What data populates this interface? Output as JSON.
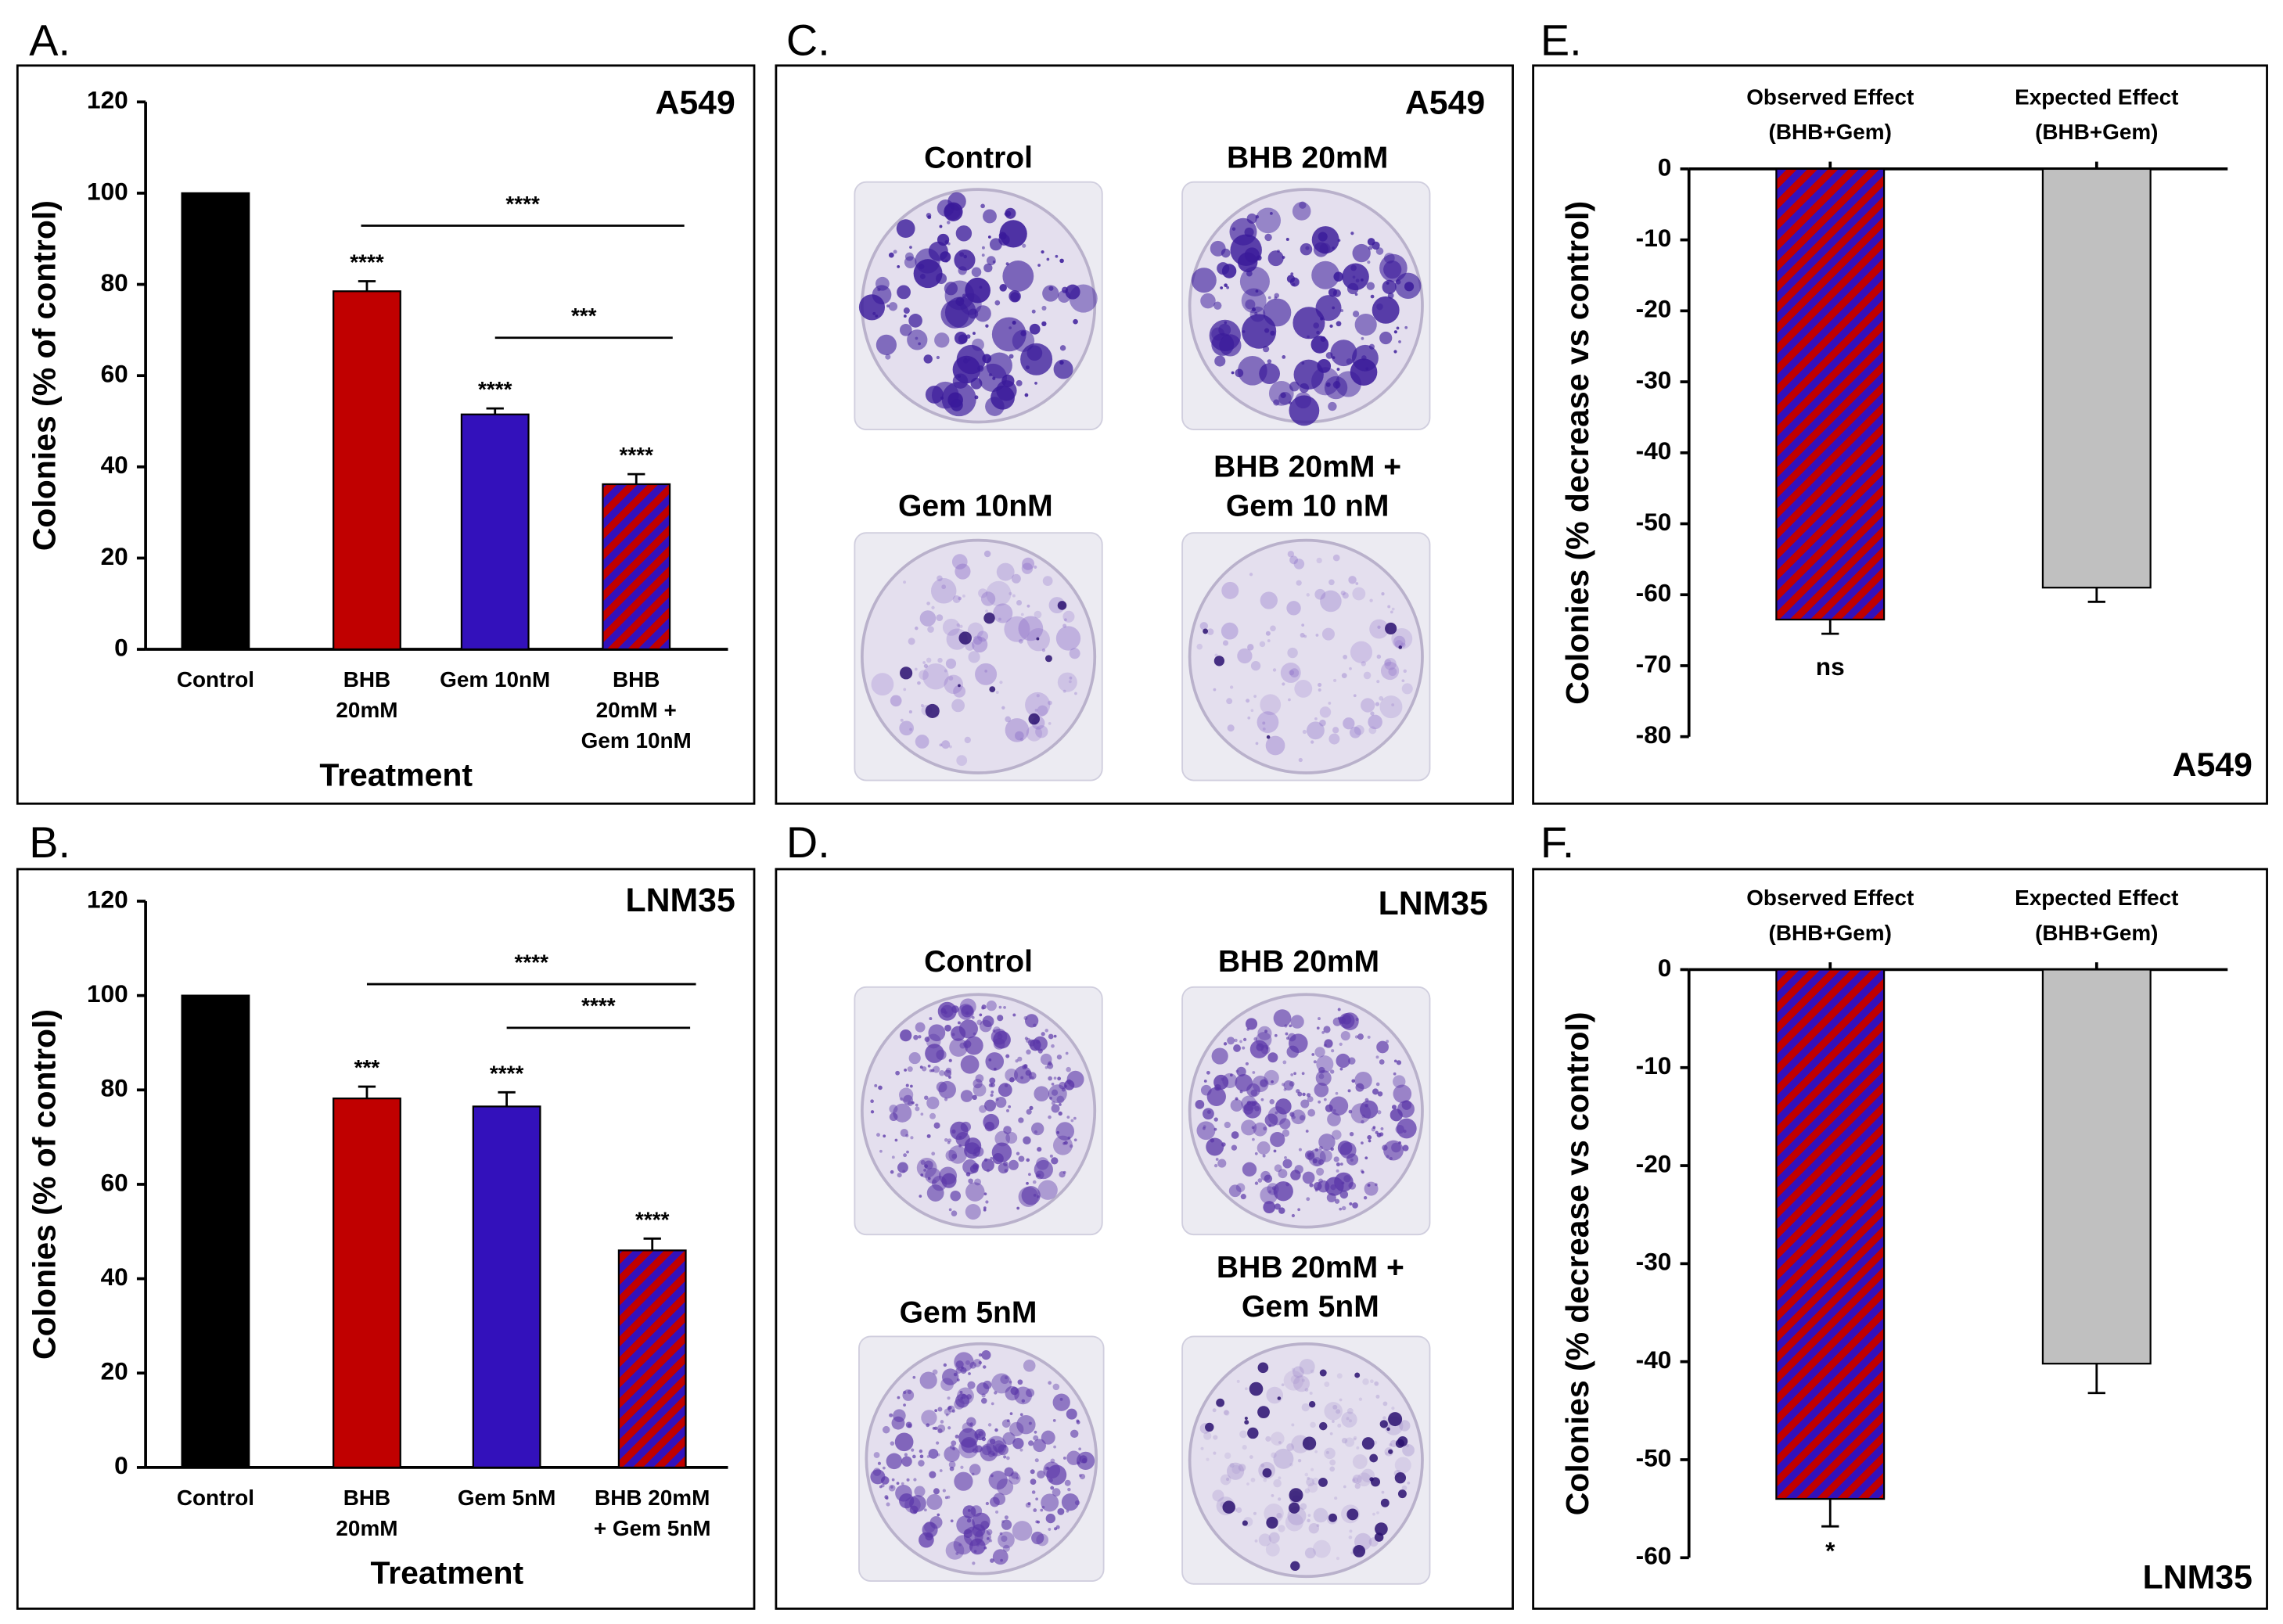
{
  "chart_data": [
    {
      "type": "bar",
      "panel_label": "A.",
      "title": "A549",
      "x_label": "Treatment",
      "y_label": "Colonies (% of control)",
      "categories": [
        [
          "Control"
        ],
        [
          "BHB",
          "20mM"
        ],
        [
          "Gem 10nM"
        ],
        [
          "BHB",
          "20mM +",
          "Gem 10nM"
        ]
      ],
      "values": [
        100,
        78.5,
        51.5,
        36.2
      ],
      "errors": [
        null,
        2.2,
        1.3,
        2.2
      ],
      "significance": [
        null,
        "****",
        "****",
        "****"
      ],
      "brackets": [
        "****",
        "***"
      ],
      "colors": [
        "#000000",
        "#c00000",
        "#3311bb",
        "hatch"
      ],
      "hatch_colors": [
        "#c00000",
        "#3311bb"
      ],
      "ylim": [
        0,
        120
      ],
      "yticks": [
        0,
        20,
        40,
        60,
        80,
        100,
        120
      ]
    },
    {
      "type": "bar",
      "panel_label": "B.",
      "title": "LNM35",
      "x_label": "Treatment",
      "y_label": "Colonies (% of control)",
      "categories": [
        [
          "Control"
        ],
        [
          "BHB",
          "20mM"
        ],
        [
          "Gem 5nM"
        ],
        [
          "BHB 20mM",
          "+ Gem 5nM"
        ]
      ],
      "values": [
        100,
        78.2,
        76.5,
        46
      ],
      "errors": [
        null,
        2.5,
        3,
        2.5
      ],
      "significance": [
        null,
        "***",
        "****",
        "****"
      ],
      "brackets": [
        "****",
        "****"
      ],
      "colors": [
        "#000000",
        "#c00000",
        "#3311bb",
        "hatch"
      ],
      "hatch_colors": [
        "#c00000",
        "#3311bb"
      ],
      "ylim": [
        0,
        120
      ],
      "yticks": [
        0,
        20,
        40,
        60,
        80,
        100,
        120
      ]
    },
    {
      "type": "bar",
      "panel_label": "E.",
      "title": "A549",
      "y_label": "Colonies (% decrease vs control)",
      "categories": [
        [
          "Observed Effect",
          "(BHB+Gem)"
        ],
        [
          "Expected Effect",
          "(BHB+Gem)"
        ]
      ],
      "values": [
        -63.5,
        -59
      ],
      "errors": [
        2,
        2
      ],
      "significance": [
        "ns",
        null
      ],
      "colors": [
        "hatch",
        "#c0c0c0"
      ],
      "hatch_colors": [
        "#c00000",
        "#3311bb"
      ],
      "ylim": [
        -80,
        0
      ],
      "yticks": [
        0,
        -10,
        -20,
        -30,
        -40,
        -50,
        -60,
        -70,
        -80
      ]
    },
    {
      "type": "bar",
      "panel_label": "F.",
      "title": "LNM35",
      "y_label": "Colonies (% decrease vs control)",
      "categories": [
        [
          "Observed Effect",
          "(BHB+Gem)"
        ],
        [
          "Expected Effect",
          "(BHB+Gem)"
        ]
      ],
      "values": [
        -54,
        -40.2
      ],
      "errors": [
        2.8,
        3
      ],
      "significance": [
        "*",
        null
      ],
      "colors": [
        "hatch",
        "#c0c0c0"
      ],
      "hatch_colors": [
        "#c00000",
        "#3311bb"
      ],
      "ylim": [
        -60,
        0
      ],
      "yticks": [
        0,
        -10,
        -20,
        -30,
        -40,
        -50,
        -60
      ]
    }
  ],
  "photo_panels": [
    {
      "panel_label": "C.",
      "title": "A549",
      "labels": [
        [
          "Control"
        ],
        [
          "BHB 20mM"
        ],
        [
          "Gem 10nM"
        ],
        [
          "BHB 20mM +",
          "Gem 10 nM"
        ]
      ]
    },
    {
      "panel_label": "D.",
      "title": "LNM35",
      "labels": [
        [
          "Control"
        ],
        [
          "BHB 20mM"
        ],
        [
          "Gem 5nM"
        ],
        [
          "BHB 20mM +",
          "Gem 5nM"
        ]
      ]
    }
  ]
}
